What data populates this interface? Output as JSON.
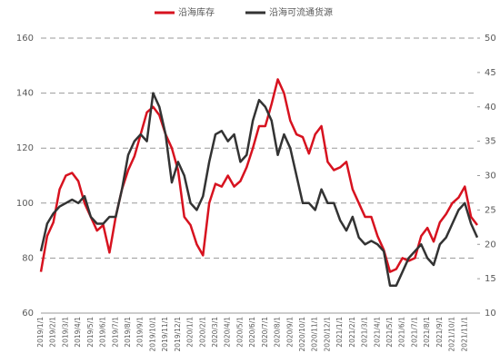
{
  "chart_data": {
    "type": "line",
    "categories": [
      "2019/1/1",
      null,
      "2019/2/1",
      null,
      "2019/3/1",
      null,
      "2019/4/1",
      null,
      "2019/5/1",
      null,
      "2019/6/1",
      null,
      "2019/7/1",
      null,
      "2019/8/1",
      null,
      "2019/9/1",
      null,
      "2019/10/1",
      null,
      "2019/11/1",
      null,
      "2019/12/1",
      null,
      "2020/1/1",
      null,
      "2020/2/1",
      null,
      "2020/3/1",
      null,
      "2020/4/1",
      null,
      "2020/5/1",
      null,
      "2020/6/1",
      null,
      "2020/7/1",
      null,
      "2020/8/1",
      null,
      "2020/9/1",
      null,
      "2020/10/1",
      null,
      "2020/11/1",
      null,
      "2020/12/1",
      null,
      "2021/1/1",
      null,
      "2021/2/1",
      null,
      "2021/3/1",
      null,
      "2021/4/1",
      null,
      "2021/5/1",
      null,
      "2021/6/1",
      null,
      "2021/7/1",
      null,
      "2021/8/1",
      null,
      "2021/9/1",
      null,
      "2021/10/1",
      null,
      "2021/11/1",
      null,
      null
    ],
    "series": [
      {
        "name": "沿海库存",
        "color": "#d7121f",
        "values": [
          75,
          88,
          93,
          105,
          110,
          111,
          108,
          100,
          95,
          90,
          92,
          82,
          95,
          105,
          112,
          117,
          125,
          133,
          135,
          132,
          125,
          120,
          112,
          95,
          92,
          85,
          81,
          100,
          107,
          106,
          110,
          106,
          108,
          113,
          120,
          128,
          128,
          136,
          145,
          140,
          130,
          125,
          124,
          118,
          125,
          128,
          115,
          112,
          113,
          115,
          105,
          100,
          95,
          95,
          88,
          83,
          75,
          76,
          80,
          79,
          80,
          88,
          91,
          86,
          93,
          96,
          100,
          102,
          106,
          95,
          92
        ]
      },
      {
        "name": "沿海可流通货源",
        "color": "#333333",
        "axis": "y2",
        "values": [
          19,
          23,
          24.5,
          25.5,
          26,
          26.5,
          26,
          27,
          24,
          23,
          23,
          24,
          24,
          28,
          33,
          35,
          36,
          35,
          42,
          40,
          36,
          29,
          32,
          30,
          26,
          25,
          27,
          32,
          36,
          36.5,
          35,
          36,
          32,
          33,
          38,
          41,
          40,
          38,
          33,
          36,
          34,
          30,
          26,
          26,
          25,
          28,
          26,
          26,
          23.5,
          22,
          24,
          21,
          20,
          20.5,
          20,
          19,
          14,
          14,
          16,
          18,
          19,
          20,
          18,
          17,
          20,
          21,
          23,
          25,
          26,
          23,
          21
        ]
      }
    ],
    "ylim": [
      60,
      160
    ],
    "yticks": [
      60,
      80,
      100,
      120,
      140,
      160
    ],
    "y2lim": [
      10,
      50
    ],
    "y2ticks": [
      10,
      15,
      20,
      25,
      30,
      35,
      40,
      45,
      50
    ],
    "grid": true,
    "legend": "top"
  }
}
